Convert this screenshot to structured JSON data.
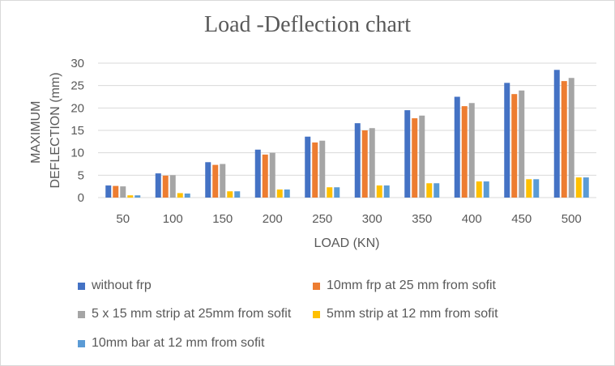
{
  "chart_data": {
    "type": "bar",
    "title": "Load -Deflection chart",
    "xlabel": "LOAD (KN)",
    "ylabel": [
      "MAXIMUM",
      "DEFLECTION (mm)"
    ],
    "ylim": [
      0,
      30
    ],
    "yticks": [
      0,
      5,
      10,
      15,
      20,
      25,
      30
    ],
    "grid": true,
    "legend_position": "bottom",
    "categories": [
      "50",
      "100",
      "150",
      "200",
      "250",
      "300",
      "350",
      "400",
      "450",
      "500"
    ],
    "series": [
      {
        "name": "without frp",
        "color": "#4472C4",
        "values": [
          2.7,
          5.4,
          7.9,
          10.7,
          13.6,
          16.6,
          19.5,
          22.5,
          25.6,
          28.5
        ]
      },
      {
        "name": "10mm frp at 25 mm from sofit",
        "color": "#ED7D31",
        "values": [
          2.6,
          4.9,
          7.3,
          9.6,
          12.3,
          15.0,
          17.7,
          20.4,
          23.1,
          26.0
        ]
      },
      {
        "name": "5 x 15 mm strip at 25mm from sofit",
        "color": "#A5A5A5",
        "values": [
          2.5,
          5.0,
          7.5,
          10.0,
          12.7,
          15.5,
          18.3,
          21.1,
          23.9,
          26.7
        ]
      },
      {
        "name": "5mm strip at 12 mm from sofit",
        "color": "#FFC000",
        "values": [
          0.5,
          1.0,
          1.4,
          1.8,
          2.3,
          2.7,
          3.2,
          3.6,
          4.1,
          4.5
        ]
      },
      {
        "name": "10mm bar at 12 mm from sofit",
        "color": "#5B9BD5",
        "values": [
          0.5,
          0.9,
          1.4,
          1.8,
          2.3,
          2.7,
          3.2,
          3.6,
          4.1,
          4.5
        ]
      }
    ]
  }
}
